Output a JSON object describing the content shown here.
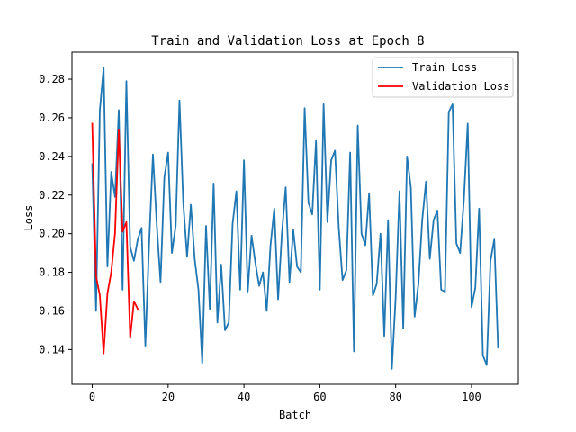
{
  "chart_data": {
    "type": "line",
    "title": "Train and Validation Loss at Epoch 8",
    "xlabel": "Batch",
    "ylabel": "Loss",
    "xlim": [
      -5.35,
      112.35
    ],
    "ylim": [
      0.122,
      0.294
    ],
    "xticks": [
      0,
      20,
      40,
      60,
      80,
      100
    ],
    "yticks": [
      0.14,
      0.16,
      0.18,
      0.2,
      0.22,
      0.24,
      0.26,
      0.28
    ],
    "ytick_labels": [
      "0.14",
      "0.16",
      "0.18",
      "0.20",
      "0.22",
      "0.24",
      "0.26",
      "0.28"
    ],
    "grid": false,
    "legend_position": "top-right",
    "series": [
      {
        "name": "Train Loss",
        "color": "#1f77b4",
        "x": [
          0,
          1,
          2,
          3,
          4,
          5,
          6,
          7,
          8,
          9,
          10,
          11,
          12,
          13,
          14,
          15,
          16,
          17,
          18,
          19,
          20,
          21,
          22,
          23,
          24,
          25,
          26,
          27,
          28,
          29,
          30,
          31,
          32,
          33,
          34,
          35,
          36,
          37,
          38,
          39,
          40,
          41,
          42,
          43,
          44,
          45,
          46,
          47,
          48,
          49,
          50,
          51,
          52,
          53,
          54,
          55,
          56,
          57,
          58,
          59,
          60,
          61,
          62,
          63,
          64,
          65,
          66,
          67,
          68,
          69,
          70,
          71,
          72,
          73,
          74,
          75,
          76,
          77,
          78,
          79,
          80,
          81,
          82,
          83,
          84,
          85,
          86,
          87,
          88,
          89,
          90,
          91,
          92,
          93,
          94,
          95,
          96,
          97,
          98,
          99,
          100,
          101,
          102,
          103,
          104,
          105,
          106,
          107
        ],
        "values": [
          0.236,
          0.16,
          0.264,
          0.286,
          0.183,
          0.232,
          0.219,
          0.264,
          0.171,
          0.279,
          0.193,
          0.186,
          0.197,
          0.203,
          0.142,
          0.195,
          0.241,
          0.205,
          0.175,
          0.229,
          0.242,
          0.19,
          0.204,
          0.269,
          0.216,
          0.188,
          0.215,
          0.187,
          0.171,
          0.133,
          0.204,
          0.161,
          0.226,
          0.154,
          0.184,
          0.15,
          0.154,
          0.205,
          0.222,
          0.171,
          0.238,
          0.17,
          0.199,
          0.185,
          0.173,
          0.18,
          0.16,
          0.194,
          0.213,
          0.166,
          0.2,
          0.224,
          0.175,
          0.202,
          0.183,
          0.18,
          0.265,
          0.216,
          0.21,
          0.248,
          0.171,
          0.267,
          0.206,
          0.238,
          0.243,
          0.203,
          0.176,
          0.181,
          0.242,
          0.139,
          0.256,
          0.2,
          0.194,
          0.221,
          0.168,
          0.174,
          0.2,
          0.147,
          0.207,
          0.13,
          0.167,
          0.222,
          0.151,
          0.24,
          0.224,
          0.157,
          0.174,
          0.207,
          0.227,
          0.187,
          0.207,
          0.212,
          0.171,
          0.17,
          0.263,
          0.267,
          0.195,
          0.19,
          0.218,
          0.257,
          0.162,
          0.172,
          0.213,
          0.137,
          0.132,
          0.186,
          0.197,
          0.141
        ]
      },
      {
        "name": "Validation Loss",
        "color": "#ff0000",
        "x": [
          0,
          1,
          2,
          3,
          4,
          5,
          6,
          7,
          8,
          9,
          10,
          11,
          12
        ],
        "values": [
          0.257,
          0.178,
          0.168,
          0.138,
          0.169,
          0.18,
          0.2,
          0.254,
          0.201,
          0.206,
          0.146,
          0.165,
          0.161
        ]
      }
    ]
  }
}
